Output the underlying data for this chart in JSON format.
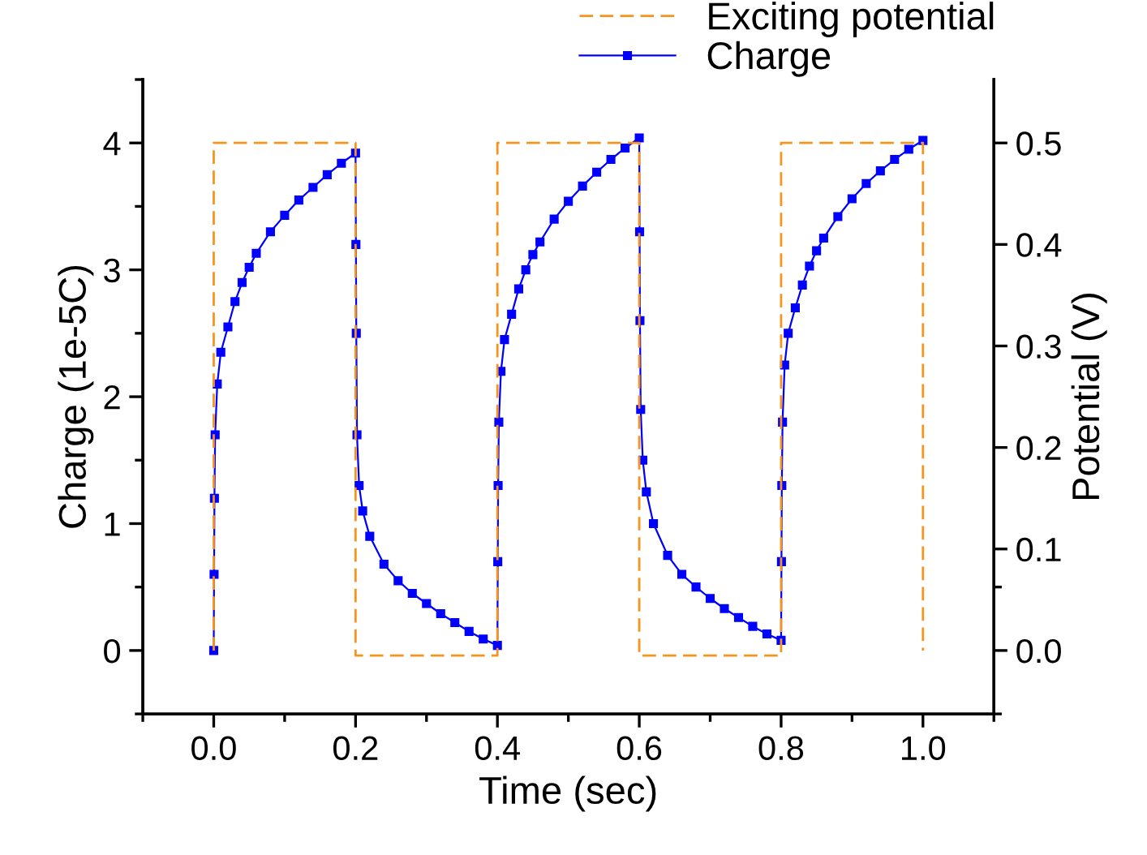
{
  "chart_data": {
    "type": "line",
    "xlabel": "Time (sec)",
    "ylabel": "Charge (1e-5C)",
    "y2label": "Potential (V)",
    "xlim": [
      -0.1,
      1.1
    ],
    "ylim": [
      -0.5,
      4.5
    ],
    "y2lim": [
      -0.0625,
      0.5625
    ],
    "xticks": [
      {
        "value": -0.1,
        "label": null
      },
      {
        "value": 0.0,
        "label": "0.0"
      },
      {
        "value": 0.1,
        "label": null
      },
      {
        "value": 0.2,
        "label": "0.2"
      },
      {
        "value": 0.3,
        "label": null
      },
      {
        "value": 0.4,
        "label": "0.4"
      },
      {
        "value": 0.5,
        "label": null
      },
      {
        "value": 0.6,
        "label": "0.6"
      },
      {
        "value": 0.7,
        "label": null
      },
      {
        "value": 0.8,
        "label": "0.8"
      },
      {
        "value": 0.9,
        "label": null
      },
      {
        "value": 1.0,
        "label": "1.0"
      },
      {
        "value": 1.1,
        "label": null
      }
    ],
    "yticks": [
      {
        "value": -0.5,
        "label": null
      },
      0,
      {
        "value": 0.5,
        "label": null
      },
      1,
      {
        "value": 1.5,
        "label": null
      },
      2,
      {
        "value": 2.5,
        "label": null
      },
      3,
      {
        "value": 3.5,
        "label": null
      },
      4,
      {
        "value": 4.5,
        "label": null
      }
    ],
    "y2ticks": [
      {
        "value": -0.0625,
        "label": null
      },
      {
        "value": 0.0,
        "label": "0.0"
      },
      {
        "value": 0.0625,
        "label": null
      },
      {
        "value": 0.1,
        "label": "0.1"
      },
      {
        "value": 0.2,
        "label": "0.2"
      },
      {
        "value": 0.3,
        "label": "0.3"
      },
      {
        "value": 0.4,
        "label": "0.4"
      },
      {
        "value": 0.5,
        "label": "0.5"
      }
    ],
    "grid": false,
    "legend": "top right",
    "series": [
      {
        "name": "Exciting potential",
        "color": "#f7941d",
        "axis": "y2",
        "line_style": "dashed",
        "marker": "none",
        "x": [
          0,
          0,
          0.2,
          0.2,
          0.4,
          0.4,
          0.6,
          0.6,
          0.8,
          0.8,
          1.0,
          1.0
        ],
        "values": [
          0.0,
          0.5,
          0.5,
          -0.005,
          -0.005,
          0.5,
          0.5,
          -0.005,
          -0.005,
          0.5,
          0.5,
          0.0
        ]
      },
      {
        "name": "Charge",
        "color": "#0000ff",
        "line_style": "solid",
        "marker": "square",
        "x": [
          0,
          0.0005,
          0.001,
          0.002,
          0.005,
          0.01,
          0.02,
          0.03,
          0.04,
          0.05,
          0.06,
          0.08,
          0.1,
          0.12,
          0.14,
          0.16,
          0.18,
          0.2,
          0.2005,
          0.201,
          0.202,
          0.205,
          0.21,
          0.22,
          0.24,
          0.26,
          0.28,
          0.3,
          0.32,
          0.34,
          0.36,
          0.38,
          0.4,
          0.4005,
          0.401,
          0.402,
          0.405,
          0.41,
          0.42,
          0.43,
          0.44,
          0.45,
          0.46,
          0.48,
          0.5,
          0.52,
          0.54,
          0.56,
          0.58,
          0.6,
          0.6005,
          0.601,
          0.602,
          0.605,
          0.61,
          0.62,
          0.64,
          0.66,
          0.68,
          0.7,
          0.72,
          0.74,
          0.76,
          0.78,
          0.8,
          0.8005,
          0.801,
          0.802,
          0.805,
          0.81,
          0.82,
          0.83,
          0.84,
          0.85,
          0.86,
          0.88,
          0.9,
          0.92,
          0.94,
          0.96,
          0.98,
          1.0
        ],
        "values": [
          0,
          0.6,
          1.2,
          1.7,
          2.1,
          2.35,
          2.55,
          2.75,
          2.9,
          3.02,
          3.13,
          3.3,
          3.43,
          3.55,
          3.65,
          3.75,
          3.84,
          3.92,
          3.2,
          2.5,
          1.7,
          1.3,
          1.1,
          0.9,
          0.68,
          0.55,
          0.45,
          0.37,
          0.29,
          0.22,
          0.15,
          0.09,
          0.04,
          0.7,
          1.3,
          1.8,
          2.2,
          2.45,
          2.65,
          2.85,
          3.0,
          3.12,
          3.22,
          3.4,
          3.54,
          3.66,
          3.77,
          3.87,
          3.96,
          4.04,
          3.3,
          2.6,
          1.9,
          1.5,
          1.25,
          1.0,
          0.75,
          0.6,
          0.5,
          0.41,
          0.33,
          0.26,
          0.19,
          0.13,
          0.08,
          0.7,
          1.3,
          1.8,
          2.25,
          2.5,
          2.7,
          2.88,
          3.03,
          3.15,
          3.25,
          3.42,
          3.56,
          3.68,
          3.78,
          3.87,
          3.95,
          4.02
        ]
      }
    ]
  }
}
